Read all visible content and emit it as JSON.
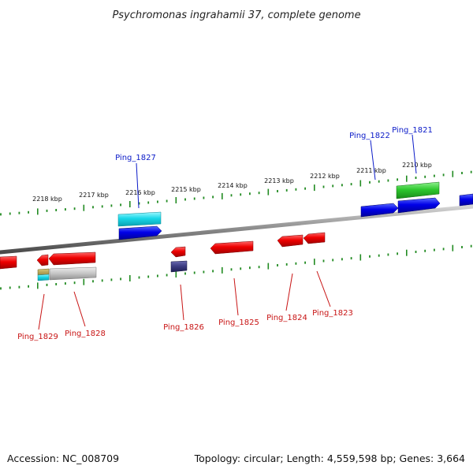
{
  "title": "Psychromonas ingrahamii 37, complete genome",
  "footer": {
    "accession": "Accession: NC_008709",
    "summary": "Topology: circular; Length: 4,559,598 bp; Genes: 3,664"
  },
  "colors": {
    "forward_label": "#0a1ac8",
    "reverse_label": "#c81414",
    "tick": "#228b22",
    "backbone": "#8a8a8a"
  },
  "scale_labels": [
    "2218 kbp",
    "2217 kbp",
    "2216 kbp",
    "2215 kbp",
    "2214 kbp",
    "2213 kbp",
    "2212 kbp",
    "2211 kbp",
    "2210 kbp"
  ],
  "forward_genes": [
    "Ping_1827",
    "Ping_1822",
    "Ping_1821"
  ],
  "reverse_genes": [
    "Ping_1829",
    "Ping_1828",
    "Ping_1826",
    "Ping_1825",
    "Ping_1824",
    "Ping_1823"
  ]
}
